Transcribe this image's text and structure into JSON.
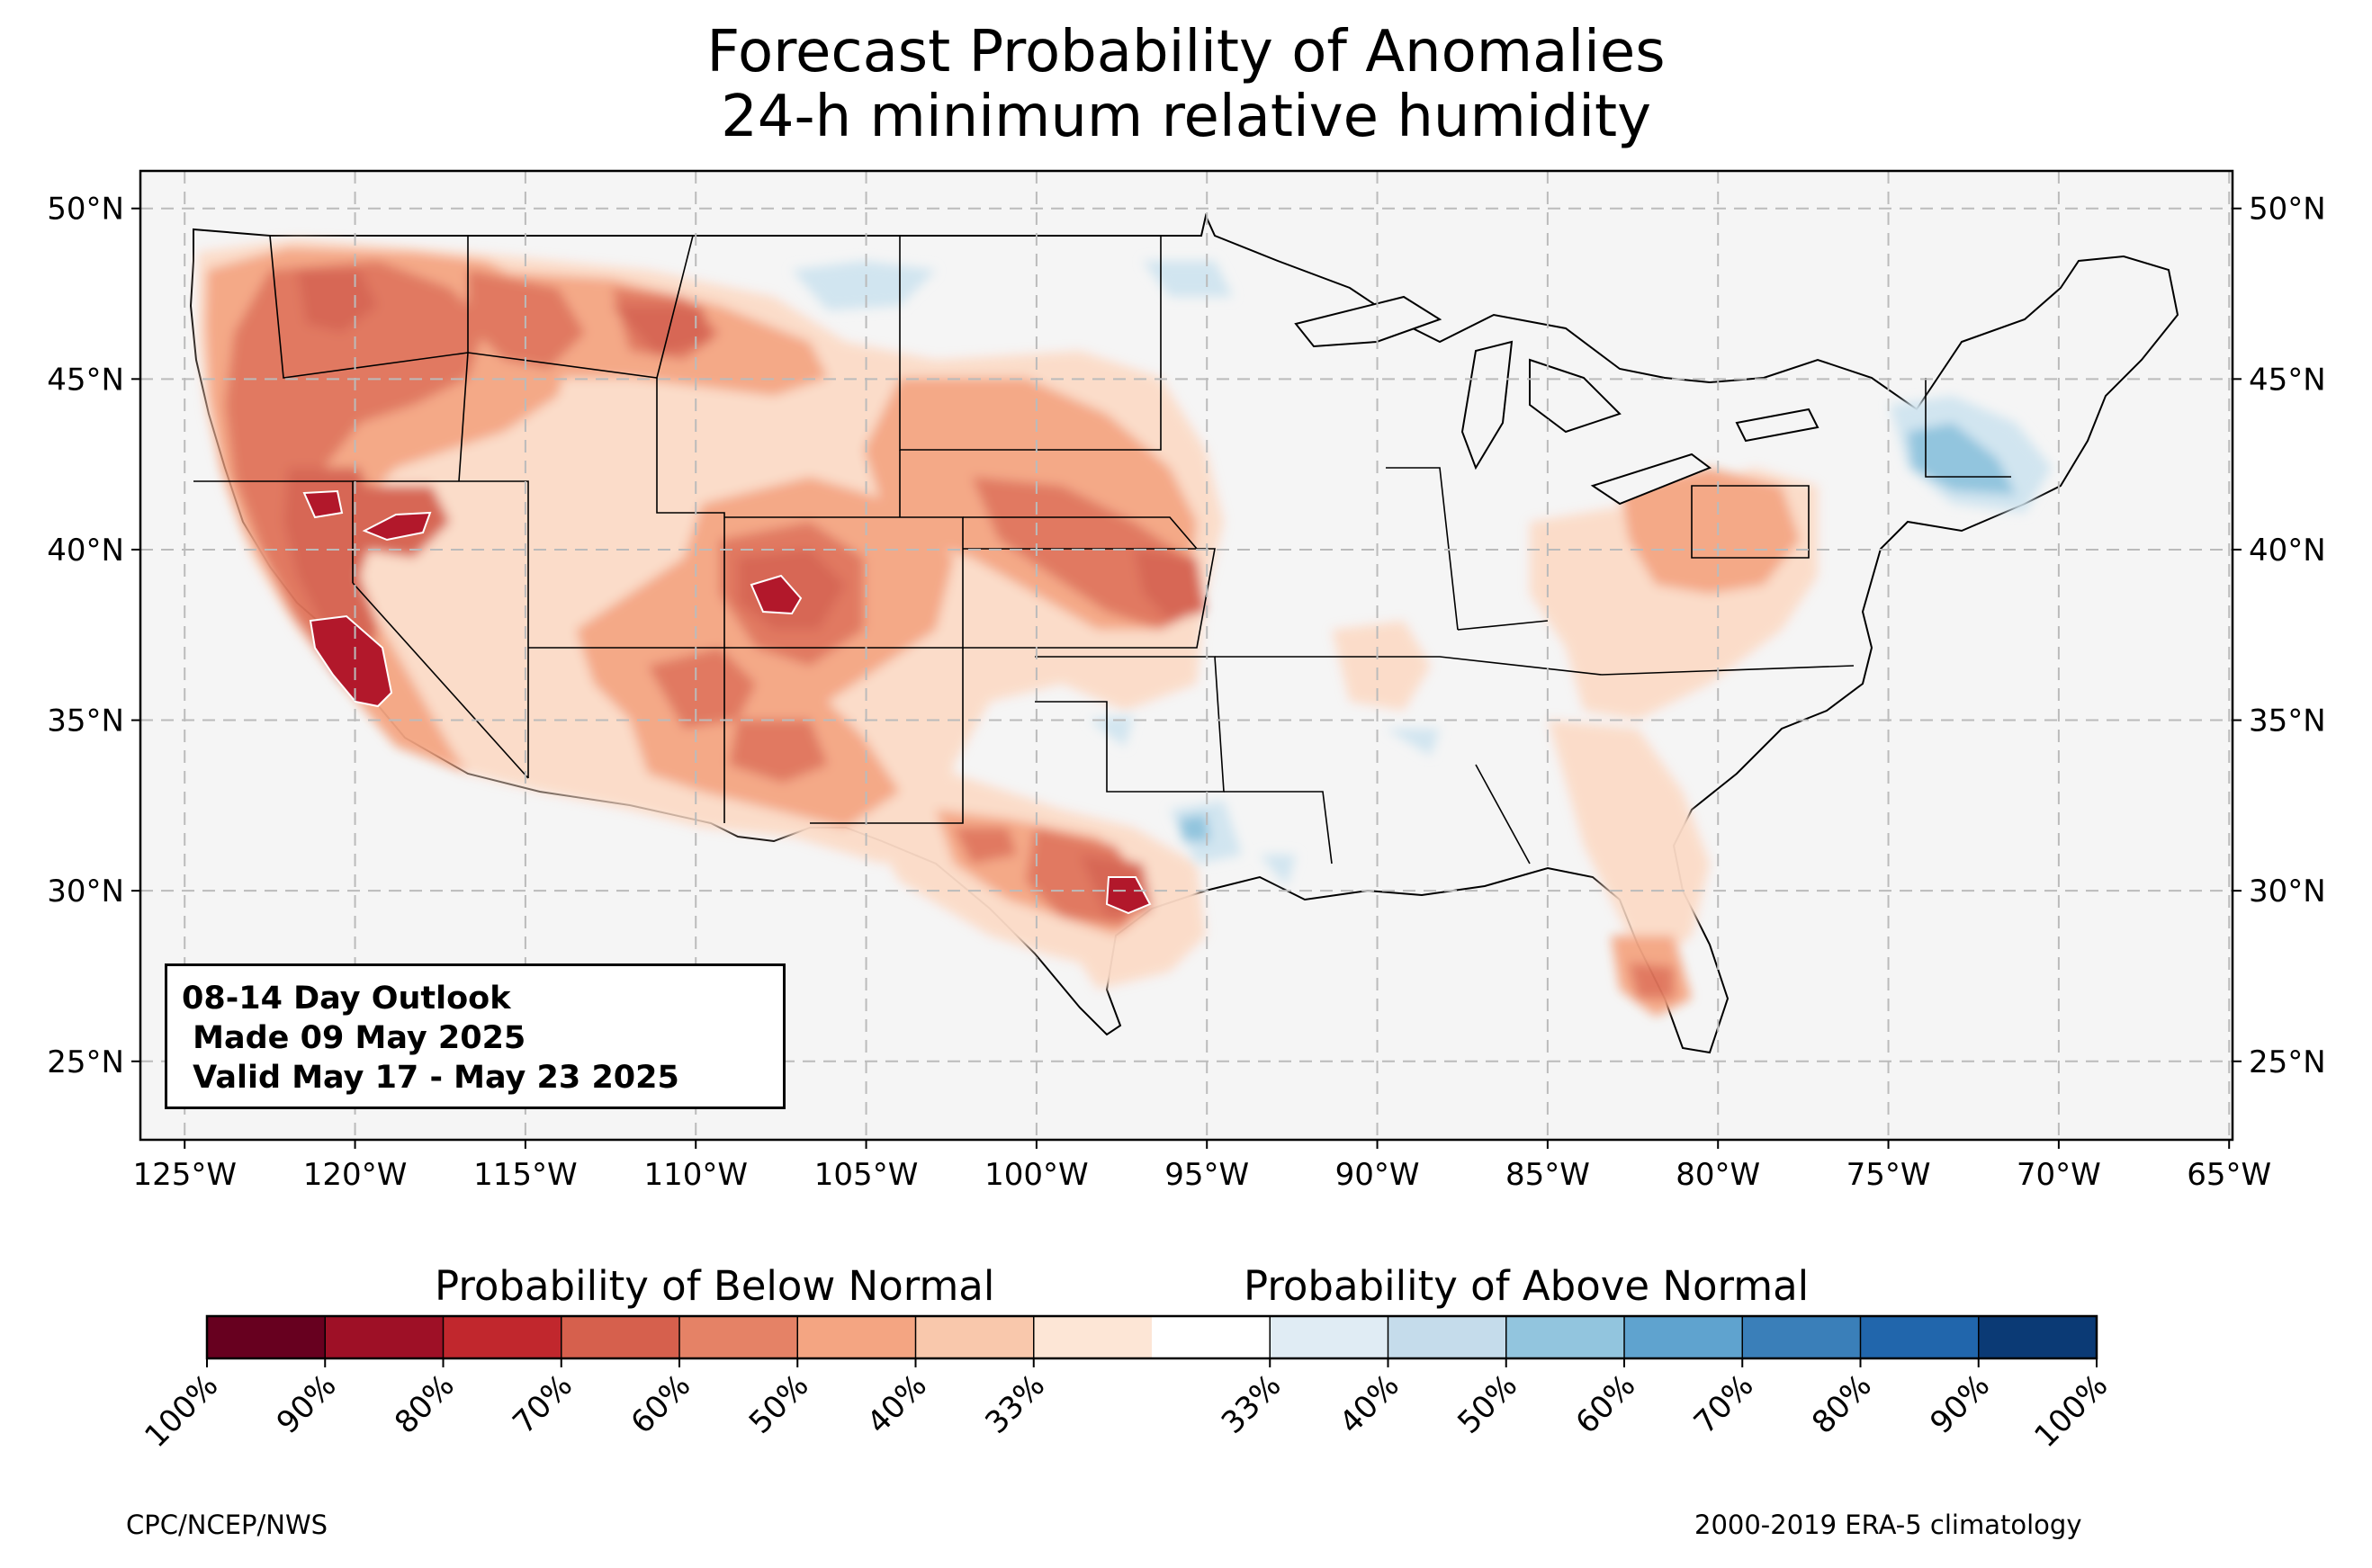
{
  "title": {
    "line1": "Forecast Probability of Anomalies",
    "line2": "24-h minimum relative humidity"
  },
  "map": {
    "projection": "plate carree",
    "lon_range": [
      -126.3,
      -64.9
    ],
    "lat_range": [
      22.7,
      51.1
    ],
    "grid": true,
    "lon_ticks": [
      "125°W",
      "120°W",
      "115°W",
      "110°W",
      "105°W",
      "100°W",
      "95°W",
      "90°W",
      "85°W",
      "80°W",
      "75°W",
      "70°W",
      "65°W"
    ],
    "lat_ticks": [
      "50°N",
      "45°N",
      "40°N",
      "35°N",
      "30°N",
      "25°N"
    ],
    "background_color": "#f5f5f5"
  },
  "anomaly_regions": [
    {
      "category": "below",
      "probability": "40%",
      "color": "#fcdbc7",
      "region": "Western U.S. broad area"
    },
    {
      "category": "below",
      "probability": "50%",
      "color": "#f4a582",
      "region": "Pacific Northwest to Great Basin"
    },
    {
      "category": "below",
      "probability": "60%",
      "color": "#e0735a",
      "region": "Oregon / Idaho / Montana"
    },
    {
      "category": "below",
      "probability": "70%",
      "color": "#d6604d",
      "region": "California interior"
    },
    {
      "category": "below",
      "probability": "80%",
      "color": "#b2182b",
      "region": "Southern San Joaquin Valley, central Colorado, central Texas"
    },
    {
      "category": "below",
      "probability": "50%",
      "color": "#f4a582",
      "region": "Central Plains (Nebraska / Kansas)"
    },
    {
      "category": "below",
      "probability": "50%",
      "color": "#f4a582",
      "region": "Southwest (Arizona / New Mexico)"
    },
    {
      "category": "below",
      "probability": "50%",
      "color": "#f4a582",
      "region": "South Texas"
    },
    {
      "category": "below",
      "probability": "40%",
      "color": "#fcdbc7",
      "region": "Mid-Atlantic / Appalachians"
    },
    {
      "category": "below",
      "probability": "50%",
      "color": "#f4a582",
      "region": "Central Florida"
    },
    {
      "category": "above",
      "probability": "40%",
      "color": "#d1e5f0",
      "region": "Northern Plains"
    },
    {
      "category": "above",
      "probability": "50%",
      "color": "#92c5de",
      "region": "Southern New England"
    }
  ],
  "outlook": {
    "line1": "08-14 Day Outlook",
    "line2": " Made 09 May 2025",
    "line3": " Valid May 17 - May 23 2025"
  },
  "colorbar": {
    "below_title": "Probability of Below Normal",
    "above_title": "Probability of Above Normal",
    "colors": [
      "#67001f",
      "#9e1026",
      "#c1272d",
      "#d6604d",
      "#e58266",
      "#f4a582",
      "#f9c8ac",
      "#fde6d6",
      "#ffffff",
      "#e0ecf4",
      "#c5dceb",
      "#92c5de",
      "#5fa3cf",
      "#3a7fb9",
      "#2166ac",
      "#0b3a75"
    ],
    "tick_labels": [
      "100%",
      "90%",
      "80%",
      "70%",
      "60%",
      "50%",
      "40%",
      "33%",
      "33%",
      "40%",
      "50%",
      "60%",
      "70%",
      "80%",
      "90%",
      "100%"
    ]
  },
  "footer": {
    "credit": "CPC/NCEP/NWS",
    "climatology": "2000-2019 ERA-5 climatology"
  }
}
